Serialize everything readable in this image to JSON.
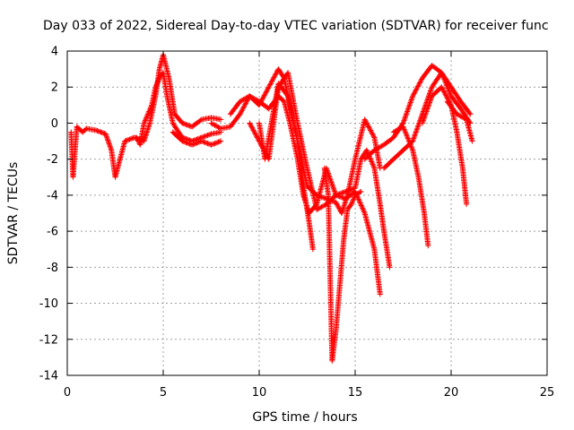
{
  "chart_data": {
    "type": "scatter",
    "title": "Day 033 of 2022, Sidereal Day-to-day VTEC variation (SDTVAR) for receiver func",
    "xlabel": "GPS time / hours",
    "ylabel": "SDTVAR / TECUs",
    "xlim": [
      0,
      25
    ],
    "ylim": [
      -14,
      4
    ],
    "xticks": [
      0,
      5,
      10,
      15,
      20,
      25
    ],
    "yticks": [
      -14,
      -12,
      -10,
      -8,
      -6,
      -4,
      -2,
      0,
      2,
      4
    ],
    "grid": true,
    "marker": "+",
    "color": "#ff0000",
    "series": [
      {
        "x": [
          0.2,
          0.3,
          0.5,
          0.8,
          1.0,
          1.5,
          2.0,
          2.3,
          2.5,
          3.0,
          3.5,
          4.0,
          4.3,
          4.6,
          4.8,
          5.0,
          5.3,
          5.6,
          6.0,
          6.5,
          7.0,
          7.5,
          8.0
        ],
        "y": [
          -0.5,
          -3.0,
          -0.2,
          -0.5,
          -0.3,
          -0.4,
          -0.6,
          -1.5,
          -3.0,
          -1.0,
          -0.8,
          -1.0,
          0.0,
          1.5,
          3.0,
          3.8,
          2.5,
          0.5,
          0.0,
          -0.2,
          0.2,
          0.3,
          0.2
        ]
      },
      {
        "x": [
          3.6,
          3.8,
          4.0,
          4.2,
          4.4,
          4.6,
          4.8,
          5.0,
          5.2,
          5.5,
          5.8,
          6.0,
          6.5,
          7.0,
          7.5,
          8.0
        ],
        "y": [
          -0.8,
          -1.2,
          0.0,
          0.5,
          1.0,
          2.0,
          2.5,
          2.8,
          1.5,
          0.0,
          -0.5,
          -0.8,
          -1.0,
          -0.8,
          -0.6,
          -0.5
        ]
      },
      {
        "x": [
          5.5,
          6.0,
          6.5,
          7.0,
          7.5,
          8.0
        ],
        "y": [
          -0.5,
          -1.0,
          -1.2,
          -1.0,
          -1.2,
          -1.0
        ]
      },
      {
        "x": [
          7.5,
          8.0,
          8.5,
          9.0,
          9.5,
          10.0,
          10.5,
          11.0,
          11.3,
          11.6,
          12.0,
          12.3,
          12.6,
          13.0,
          13.5,
          14.0,
          14.5,
          15.0,
          15.3,
          15.6,
          16.0,
          16.3,
          16.5,
          16.8
        ],
        "y": [
          0.0,
          -0.3,
          -0.2,
          0.5,
          1.5,
          1.2,
          0.8,
          1.5,
          1.2,
          0.0,
          -2.0,
          -4.0,
          -5.0,
          -4.5,
          -2.5,
          -4.0,
          -3.8,
          -3.6,
          -2.0,
          -1.5,
          -2.5,
          -4.5,
          -6.0,
          -8.0
        ]
      },
      {
        "x": [
          8.5,
          9.0,
          9.5,
          10.0,
          10.5,
          11.0,
          11.3,
          11.6,
          12.0,
          12.5,
          13.0,
          13.5,
          14.0,
          14.3,
          14.6,
          15.0,
          15.5,
          16.0,
          16.3
        ],
        "y": [
          0.5,
          1.2,
          1.5,
          1.0,
          2.0,
          3.0,
          2.5,
          1.0,
          -1.0,
          -3.5,
          -4.0,
          -4.2,
          -4.4,
          -5.0,
          -4.0,
          -2.0,
          0.2,
          -0.8,
          -2.5
        ]
      },
      {
        "x": [
          9.5,
          10.0,
          10.5,
          11.0,
          11.5,
          12.0,
          12.5,
          13.0,
          13.5,
          14.0,
          14.5,
          15.0,
          15.5,
          16.0,
          16.3
        ],
        "y": [
          0.0,
          -1.0,
          -2.0,
          2.0,
          2.8,
          0.0,
          -2.5,
          -4.8,
          -4.5,
          -4.0,
          -4.2,
          -3.8,
          -5.0,
          -7.0,
          -9.5
        ]
      },
      {
        "x": [
          10.0,
          10.3,
          11.0,
          11.5,
          12.0,
          12.3,
          12.6,
          12.8
        ],
        "y": [
          0.0,
          -2.0,
          2.2,
          1.5,
          -1.0,
          -3.5,
          -5.5,
          -7.0
        ]
      },
      {
        "x": [
          13.4,
          13.6,
          13.8,
          14.0,
          14.2,
          14.4,
          14.6,
          14.8,
          15.0,
          15.3
        ],
        "y": [
          -2.5,
          -4.0,
          -13.2,
          -11.5,
          -9.0,
          -6.5,
          -4.8,
          -4.5,
          -4.0,
          -3.8
        ]
      },
      {
        "x": [
          15.5,
          16.0,
          16.5,
          17.0,
          17.5,
          18.0,
          18.5,
          19.0,
          19.5,
          20.0,
          20.5,
          21.0
        ],
        "y": [
          -2.0,
          -1.5,
          -1.2,
          -0.8,
          0.0,
          1.5,
          2.5,
          3.2,
          2.8,
          2.0,
          1.2,
          0.5
        ]
      },
      {
        "x": [
          16.5,
          17.0,
          17.5,
          18.0,
          18.5,
          19.0,
          19.5,
          20.0,
          20.5,
          21.0
        ],
        "y": [
          -2.5,
          -2.0,
          -1.5,
          -1.0,
          0.5,
          2.0,
          2.8,
          1.5,
          0.8,
          0.0
        ]
      },
      {
        "x": [
          17.0,
          17.5,
          18.0,
          18.3,
          18.6,
          18.8
        ],
        "y": [
          -0.5,
          -0.2,
          -1.5,
          -3.0,
          -5.0,
          -6.8
        ]
      },
      {
        "x": [
          18.5,
          19.0,
          19.5,
          20.0,
          20.3,
          20.6,
          20.8
        ],
        "y": [
          0.0,
          1.5,
          2.0,
          1.0,
          -0.5,
          -2.5,
          -4.5
        ]
      },
      {
        "x": [
          19.8,
          20.3,
          20.8,
          21.1
        ],
        "y": [
          1.2,
          0.5,
          0.2,
          -1.0
        ]
      }
    ]
  }
}
